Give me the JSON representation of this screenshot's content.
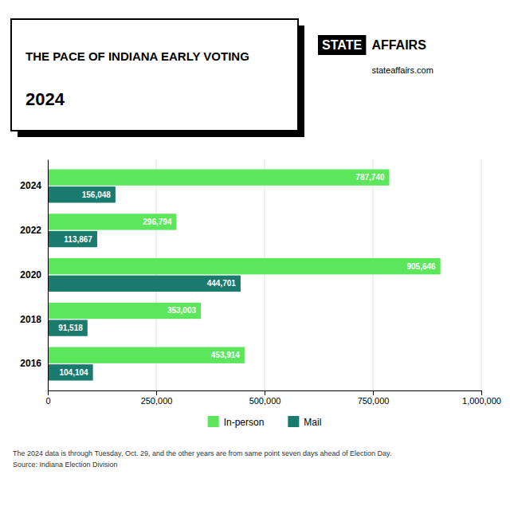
{
  "chart_data": {
    "type": "bar",
    "orientation": "horizontal",
    "title": "THE PACE OF INDIANA EARLY VOTING",
    "subtitle": "2024",
    "annotations": [
      "STATE",
      "AFFAIRS",
      "stateaffairs.com",
      "The 2024 data is through Tuesday, Oct. 29, and the other years are from same point seven days ahead of Election Day.",
      "Source: Indiana Election Division"
    ],
    "categories": [
      "2024",
      "2022",
      "2020",
      "2018",
      "2016"
    ],
    "series": [
      {
        "name": "In-person",
        "color": "#5ce65c",
        "values": [
          787740,
          296794,
          905646,
          353003,
          453914
        ],
        "value_labels": [
          "787,740",
          "296,794",
          "905,646",
          "353,003",
          "453,914"
        ]
      },
      {
        "name": "Mail",
        "color": "#1a7a6e",
        "values": [
          156048,
          113867,
          444701,
          91518,
          104104
        ],
        "value_labels": [
          "156,048",
          "113,867",
          "444,701",
          "91,518",
          "104,104"
        ]
      }
    ],
    "xlim": [
      0,
      1000000
    ],
    "xticks": [
      0,
      {
        "value": 250000,
        "label": "250,000"
      },
      {
        "value": 500000,
        "label": "500,000"
      },
      {
        "value": 750000,
        "label": "750,000"
      },
      {
        "value": 1000000,
        "label": "1,000,000"
      }
    ],
    "grid": true,
    "legend": "bottom",
    "data_labels": true
  }
}
